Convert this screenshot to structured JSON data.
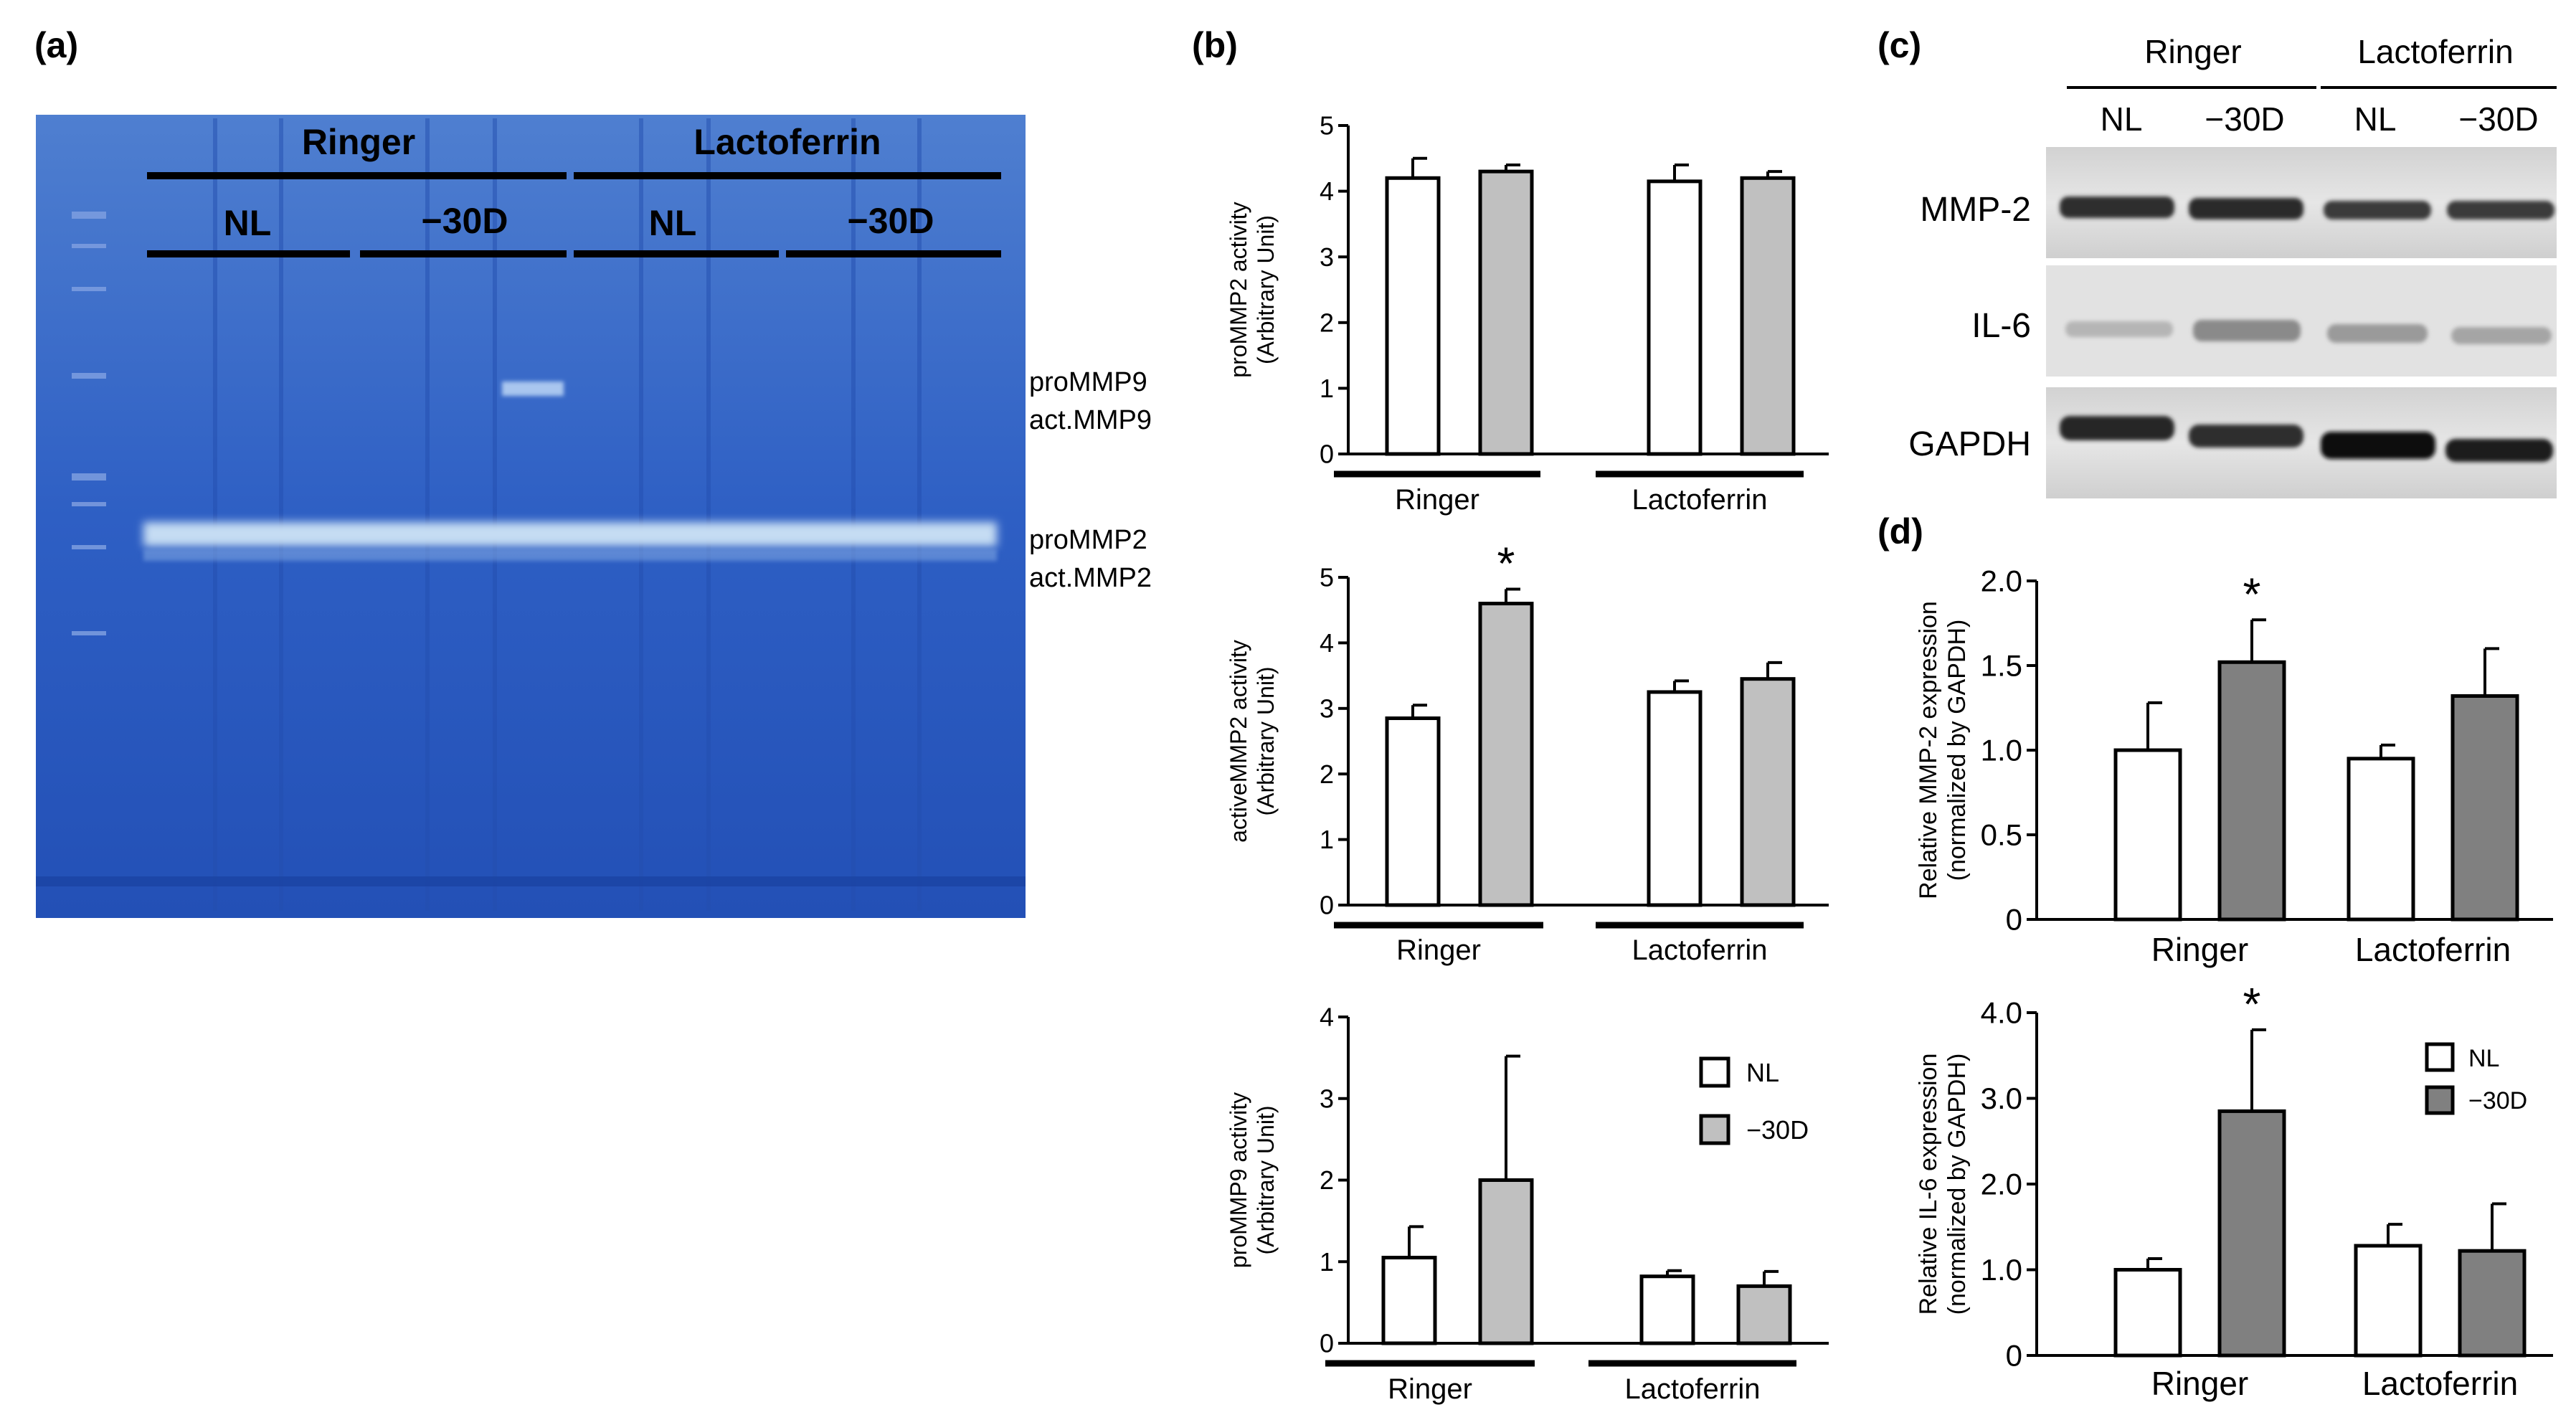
{
  "panels": {
    "a": {
      "letter": "(a)",
      "group_labels": [
        "Ringer",
        "Lactoferrin"
      ],
      "sub_labels": [
        "NL",
        "−30D",
        "NL",
        "−30D"
      ],
      "band_labels": [
        "proMMP9",
        "act.MMP9",
        "proMMP2",
        "act.MMP2"
      ]
    },
    "b": {
      "letter": "(b)"
    },
    "c": {
      "letter": "(c)",
      "group_labels": [
        "Ringer",
        "Lactoferrin"
      ],
      "sub_labels": [
        "NL",
        "−30D",
        "NL",
        "−30D"
      ],
      "row_labels": [
        "MMP-2",
        "IL-6",
        "GAPDH"
      ]
    },
    "d": {
      "letter": "(d)"
    }
  },
  "legend_b": [
    {
      "label": "NL",
      "color": "#ffffff"
    },
    {
      "label": "−30D",
      "color": "#c0c0c0"
    }
  ],
  "legend_d": [
    {
      "label": "NL",
      "color": "#ffffff"
    },
    {
      "label": "−30D",
      "color": "#808080"
    }
  ],
  "chart_data": [
    {
      "id": "b1",
      "type": "bar",
      "categories": [
        "Ringer",
        "Lactoferrin"
      ],
      "series": [
        {
          "name": "NL",
          "values": [
            4.2,
            4.15
          ],
          "errors": [
            0.3,
            0.25
          ]
        },
        {
          "name": "−30D",
          "values": [
            4.3,
            4.2
          ],
          "errors": [
            0.1,
            0.1
          ]
        }
      ],
      "ylabel": [
        "proMMP2 activity",
        "(Arbitrary Unit)"
      ],
      "ylim": [
        0,
        5
      ],
      "ticks": [
        "0",
        "1",
        "2",
        "3",
        "4",
        "5"
      ],
      "sig": []
    },
    {
      "id": "b2",
      "type": "bar",
      "categories": [
        "Ringer",
        "Lactoferrin"
      ],
      "series": [
        {
          "name": "NL",
          "values": [
            2.85,
            3.25
          ],
          "errors": [
            0.2,
            0.17
          ]
        },
        {
          "name": "−30D",
          "values": [
            4.6,
            3.45
          ],
          "errors": [
            0.22,
            0.25
          ]
        }
      ],
      "ylabel": [
        "activeMMP2 activity",
        "(Arbitrary Unit)"
      ],
      "ylim": [
        0,
        5
      ],
      "ticks": [
        "0",
        "1",
        "2",
        "3",
        "4",
        "5"
      ],
      "sig": [
        "*"
      ]
    },
    {
      "id": "b3",
      "type": "bar",
      "categories": [
        "Ringer",
        "Lactoferrin"
      ],
      "series": [
        {
          "name": "NL",
          "values": [
            1.05,
            0.82
          ],
          "errors": [
            0.38,
            0.07
          ]
        },
        {
          "name": "−30D",
          "values": [
            2.0,
            0.7
          ],
          "errors": [
            1.52,
            0.18
          ]
        }
      ],
      "ylabel": [
        "proMMP9 activity",
        "(Arbitrary Unit)"
      ],
      "ylim": [
        0,
        4
      ],
      "ticks": [
        "0",
        "1",
        "2",
        "3",
        "4"
      ],
      "sig": []
    },
    {
      "id": "d1",
      "type": "bar",
      "categories": [
        "Ringer",
        "Lactoferrin"
      ],
      "series": [
        {
          "name": "NL",
          "values": [
            1.0,
            0.95
          ],
          "errors": [
            0.28,
            0.08
          ]
        },
        {
          "name": "−30D",
          "values": [
            1.52,
            1.32
          ],
          "errors": [
            0.25,
            0.28
          ]
        }
      ],
      "ylabel": [
        "Relative MMP-2 expression",
        "(normalized by GAPDH)"
      ],
      "ylim": [
        0,
        2.0
      ],
      "ticks": [
        "0",
        "0.5",
        "1.0",
        "1.5",
        "2.0"
      ],
      "sig": [
        "*"
      ]
    },
    {
      "id": "d2",
      "type": "bar",
      "categories": [
        "Ringer",
        "Lactoferrin"
      ],
      "series": [
        {
          "name": "NL",
          "values": [
            1.0,
            1.28
          ],
          "errors": [
            0.13,
            0.25
          ]
        },
        {
          "name": "−30D",
          "values": [
            2.85,
            1.22
          ],
          "errors": [
            0.95,
            0.55
          ]
        }
      ],
      "ylabel": [
        "Relative IL-6 expression",
        "(normalized by GAPDH)"
      ],
      "ylim": [
        0,
        4.0
      ],
      "ticks": [
        "0",
        "1.0",
        "2.0",
        "3.0",
        "4.0"
      ],
      "sig": [
        "*"
      ]
    }
  ]
}
